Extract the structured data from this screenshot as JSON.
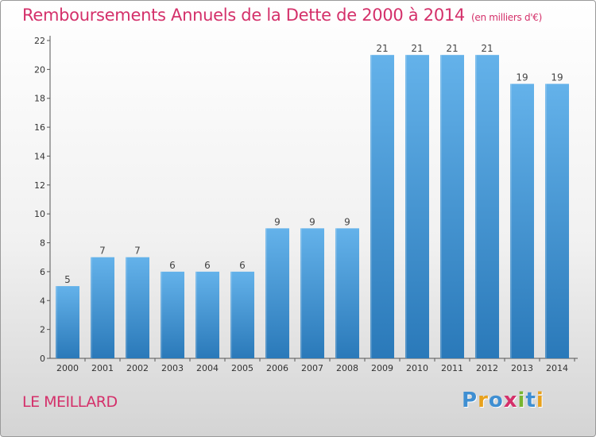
{
  "header": {
    "title": "Remboursements Annuels de la Dette de 2000 à 2014",
    "subtitle": "(en milliers d'€)"
  },
  "footer": {
    "town": "LE MEILLARD",
    "logo_text": "Proxiti"
  },
  "colors": {
    "title": "#d4306a",
    "bar_top": "#64b2ea",
    "bar_bottom": "#2a79b9",
    "logo": [
      "#3f8fd2",
      "#e8a11c",
      "#3f8fd2",
      "#d4306a",
      "#77b530",
      "#3f8fd2",
      "#e8a11c"
    ]
  },
  "chart_data": {
    "type": "bar",
    "title": "Remboursements Annuels de la Dette de 2000 à 2014",
    "subtitle": "(en milliers d'€)",
    "xlabel": "",
    "ylabel": "",
    "categories": [
      "2000",
      "2001",
      "2002",
      "2003",
      "2004",
      "2005",
      "2006",
      "2007",
      "2008",
      "2009",
      "2010",
      "2011",
      "2012",
      "2013",
      "2014"
    ],
    "values": [
      5,
      7,
      7,
      6,
      6,
      6,
      9,
      9,
      9,
      21,
      21,
      21,
      21,
      19,
      19
    ],
    "ylim": [
      0,
      22
    ],
    "yticks": [
      0,
      2,
      4,
      6,
      8,
      10,
      12,
      14,
      16,
      18,
      20,
      22
    ],
    "grid": false,
    "legend": "none"
  }
}
